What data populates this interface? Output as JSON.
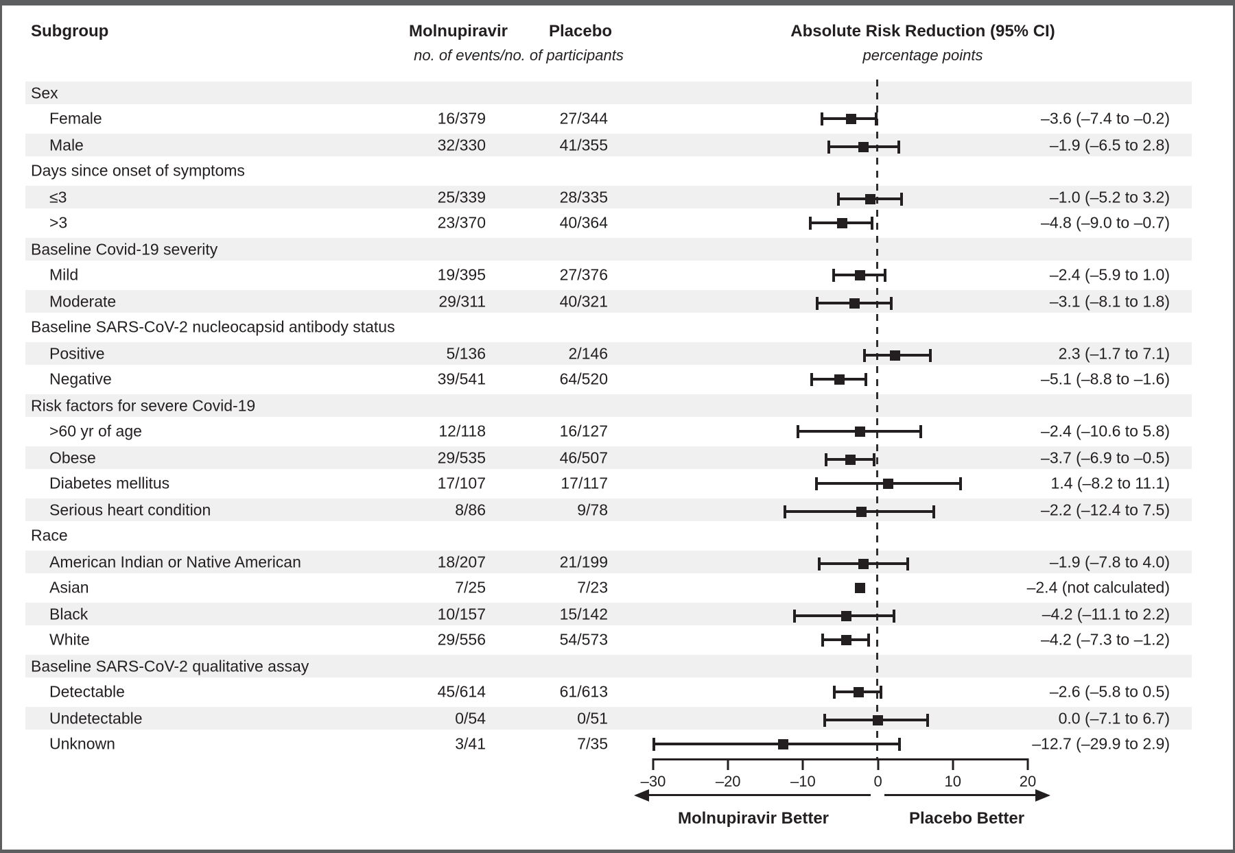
{
  "header": {
    "subgroup": "Subgroup",
    "molnupiravir": "Molnupiravir",
    "placebo": "Placebo",
    "events_note": "no. of events/no. of participants",
    "arr_title": "Absolute Risk Reduction (95% CI)",
    "arr_units": "percentage points"
  },
  "footer": {
    "left_label": "Molnupiravir Better",
    "right_label": "Placebo Better"
  },
  "colors": {
    "text": "#231f20",
    "marker": "#231f20",
    "band": "#f0f0f1",
    "frame": "#5d5e60"
  },
  "chart_data": {
    "type": "forest",
    "title": "Absolute Risk Reduction (95% CI)",
    "units": "percentage points",
    "x_axis": {
      "min": -30,
      "max": 20,
      "ticks": [
        -30,
        -20,
        -10,
        0,
        10,
        20
      ],
      "tick_labels": [
        "–30",
        "–20",
        "–10",
        "0",
        "10",
        "20"
      ],
      "zero_reference_line": "dashed"
    },
    "direction_labels": {
      "left": "Molnupiravir Better",
      "right": "Placebo Better"
    },
    "rows": [
      {
        "kind": "group",
        "label": "Sex"
      },
      {
        "kind": "item",
        "label": "Female",
        "mol": "16/379",
        "placebo": "27/344",
        "est": -3.6,
        "lo": -7.4,
        "hi": -0.2,
        "text": "–3.6 (–7.4 to –0.2)"
      },
      {
        "kind": "item",
        "label": "Male",
        "mol": "32/330",
        "placebo": "41/355",
        "est": -1.9,
        "lo": -6.5,
        "hi": 2.8,
        "text": "–1.9 (–6.5 to 2.8)"
      },
      {
        "kind": "group",
        "label": "Days since onset of symptoms"
      },
      {
        "kind": "item",
        "label": "≤3",
        "mol": "25/339",
        "placebo": "28/335",
        "est": -1.0,
        "lo": -5.2,
        "hi": 3.2,
        "text": "–1.0 (–5.2 to 3.2)"
      },
      {
        "kind": "item",
        "label": ">3",
        "mol": "23/370",
        "placebo": "40/364",
        "est": -4.8,
        "lo": -9.0,
        "hi": -0.7,
        "text": "–4.8 (–9.0 to –0.7)"
      },
      {
        "kind": "group",
        "label": "Baseline Covid-19 severity"
      },
      {
        "kind": "item",
        "label": "Mild",
        "mol": "19/395",
        "placebo": "27/376",
        "est": -2.4,
        "lo": -5.9,
        "hi": 1.0,
        "text": "–2.4 (–5.9 to 1.0)"
      },
      {
        "kind": "item",
        "label": "Moderate",
        "mol": "29/311",
        "placebo": "40/321",
        "est": -3.1,
        "lo": -8.1,
        "hi": 1.8,
        "text": "–3.1 (–8.1 to 1.8)"
      },
      {
        "kind": "group",
        "label": "Baseline SARS-CoV-2 nucleocapsid antibody status"
      },
      {
        "kind": "item",
        "label": "Positive",
        "mol": "5/136",
        "placebo": "2/146",
        "est": 2.3,
        "lo": -1.7,
        "hi": 7.1,
        "text": "2.3 (–1.7 to 7.1)"
      },
      {
        "kind": "item",
        "label": "Negative",
        "mol": "39/541",
        "placebo": "64/520",
        "est": -5.1,
        "lo": -8.8,
        "hi": -1.6,
        "text": "–5.1 (–8.8 to –1.6)"
      },
      {
        "kind": "group",
        "label": "Risk factors for severe Covid-19"
      },
      {
        "kind": "item",
        "label": ">60 yr of age",
        "mol": "12/118",
        "placebo": "16/127",
        "est": -2.4,
        "lo": -10.6,
        "hi": 5.8,
        "text": "–2.4 (–10.6 to 5.8)"
      },
      {
        "kind": "item",
        "label": "Obese",
        "mol": "29/535",
        "placebo": "46/507",
        "est": -3.7,
        "lo": -6.9,
        "hi": -0.5,
        "text": "–3.7 (–6.9 to –0.5)"
      },
      {
        "kind": "item",
        "label": "Diabetes mellitus",
        "mol": "17/107",
        "placebo": "17/117",
        "est": 1.4,
        "lo": -8.2,
        "hi": 11.1,
        "text": "1.4 (–8.2 to 11.1)"
      },
      {
        "kind": "item",
        "label": "Serious heart condition",
        "mol": "8/86",
        "placebo": "9/78",
        "est": -2.2,
        "lo": -12.4,
        "hi": 7.5,
        "text": "–2.2 (–12.4 to 7.5)"
      },
      {
        "kind": "group",
        "label": "Race"
      },
      {
        "kind": "item",
        "label": "American Indian or Native American",
        "mol": "18/207",
        "placebo": "21/199",
        "est": -1.9,
        "lo": -7.8,
        "hi": 4.0,
        "text": "–1.9 (–7.8 to 4.0)"
      },
      {
        "kind": "item",
        "label": "Asian",
        "mol": "7/25",
        "placebo": "7/23",
        "est": -2.4,
        "lo": null,
        "hi": null,
        "text": "–2.4 (not calculated)"
      },
      {
        "kind": "item",
        "label": "Black",
        "mol": "10/157",
        "placebo": "15/142",
        "est": -4.2,
        "lo": -11.1,
        "hi": 2.2,
        "text": "–4.2 (–11.1 to 2.2)"
      },
      {
        "kind": "item",
        "label": "White",
        "mol": "29/556",
        "placebo": "54/573",
        "est": -4.2,
        "lo": -7.3,
        "hi": -1.2,
        "text": "–4.2 (–7.3 to –1.2)"
      },
      {
        "kind": "group",
        "label": "Baseline SARS-CoV-2 qualitative assay"
      },
      {
        "kind": "item",
        "label": "Detectable",
        "mol": "45/614",
        "placebo": "61/613",
        "est": -2.6,
        "lo": -5.8,
        "hi": 0.5,
        "text": "–2.6 (–5.8 to 0.5)"
      },
      {
        "kind": "item",
        "label": "Undetectable",
        "mol": "0/54",
        "placebo": "0/51",
        "est": 0.0,
        "lo": -7.1,
        "hi": 6.7,
        "text": "0.0 (–7.1 to 6.7)"
      },
      {
        "kind": "item",
        "label": "Unknown",
        "mol": "3/41",
        "placebo": "7/35",
        "est": -12.7,
        "lo": -29.9,
        "hi": 2.9,
        "text": "–12.7 (–29.9 to 2.9)"
      }
    ]
  }
}
